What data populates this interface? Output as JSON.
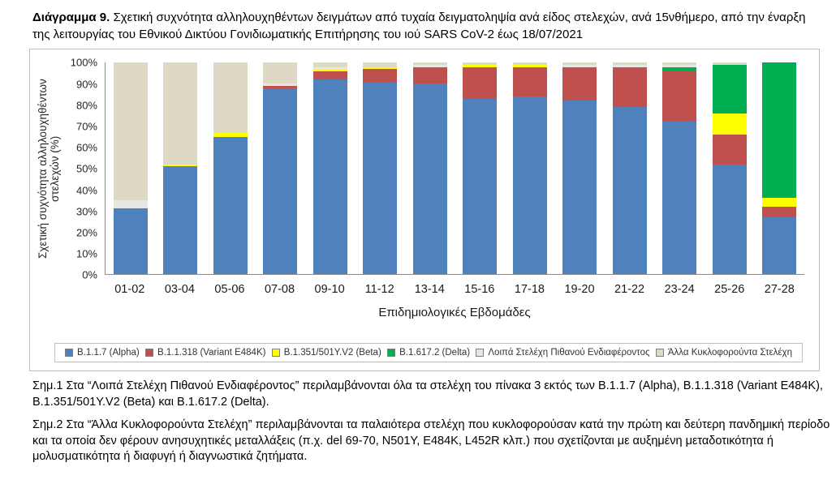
{
  "title": {
    "prefix": "Διάγραμμα 9.",
    "text": " Σχετική συχνότητα αλληλουχηθέντων δειγμάτων από τυχαία δειγματοληψία ανά είδος στελεχών, ανά 15νθήμερο, από την έναρξη της λειτουργίας του Εθνικού Δικτύου Γονιδιωματικής Επιτήρησης του ιού SARS CoV-2 έως 18/07/2021"
  },
  "chart_data": {
    "type": "bar",
    "stacked": true,
    "title": "",
    "xlabel": "Επιδημιολογικές Εβδομάδες",
    "ylabel": "Σχετική συχνότητα αλληλουχηθέντων στελεχών (%)",
    "ylim": [
      0,
      100
    ],
    "ytick_step": 10,
    "grid": false,
    "legend_position": "bottom",
    "yticks": [
      "0%",
      "10%",
      "20%",
      "30%",
      "40%",
      "50%",
      "60%",
      "70%",
      "80%",
      "90%",
      "100%"
    ],
    "categories": [
      "01-02",
      "03-04",
      "05-06",
      "07-08",
      "09-10",
      "11-12",
      "13-14",
      "15-16",
      "17-18",
      "19-20",
      "21-22",
      "23-24",
      "25-26",
      "27-28"
    ],
    "series": [
      {
        "name": "B.1.1.7 (Alpha)",
        "color": "#4F81BD",
        "values": [
          31,
          51,
          65,
          88,
          92,
          91,
          90,
          83,
          84,
          82,
          79,
          72,
          52,
          27
        ]
      },
      {
        "name": "B.1.1.318 (Variant E484K)",
        "color": "#C0504D",
        "values": [
          0,
          0,
          0,
          1,
          4,
          6,
          8,
          15,
          14,
          16,
          19,
          24,
          14,
          5
        ]
      },
      {
        "name": "B.1.351/501Y.V2 (Beta)",
        "color": "#FFFF00",
        "values": [
          0,
          1,
          2,
          0,
          1,
          1,
          0,
          1,
          1,
          0,
          0,
          0,
          10,
          4
        ]
      },
      {
        "name": "B.1.617.2 (Delta)",
        "color": "#00B050",
        "values": [
          0,
          0,
          0,
          0,
          0,
          0,
          0,
          0,
          0,
          0,
          0,
          2,
          23,
          64
        ]
      },
      {
        "name": "Λοιπά Στελέχη Πιθανού Ενδιαφέροντος",
        "color": "#E8E6E1",
        "values": [
          4,
          0,
          0,
          1,
          1,
          0,
          1,
          0,
          0,
          1,
          1,
          1,
          0,
          0
        ]
      },
      {
        "name": "Άλλα Κυκλοφορούντα Στελέχη",
        "color": "#DDD9C4",
        "values": [
          65,
          48,
          33,
          10,
          2,
          2,
          1,
          1,
          1,
          1,
          1,
          1,
          1,
          0
        ]
      }
    ]
  },
  "notes": {
    "note1": "Σημ.1 Στα “Λοιπά Στελέχη Πιθανού Ενδιαφέροντος” περιλαμβάνονται όλα τα στελέχη του πίνακα 3 εκτός των B.1.1.7 (Alpha), B.1.1.318 (Variant E484K), B.1.351/501Y.V2 (Beta) και B.1.617.2 (Delta).",
    "note2": "Σημ.2 Στα “Άλλα Κυκλοφορούντα Στελέχη” περιλαμβάνονται τα παλαιότερα στελέχη που κυκλοφορούσαν κατά την πρώτη και δεύτερη πανδημική περίοδο και τα οποία δεν φέρουν ανησυχητικές μεταλλάξεις (π.χ. del 69-70, N501Y, E484K, L452R κλπ.) που σχετίζονται με αυξημένη μεταδοτικότητα ή μολυσματικότητα ή διαφυγή ή διαγνωστικά ζητήματα."
  }
}
